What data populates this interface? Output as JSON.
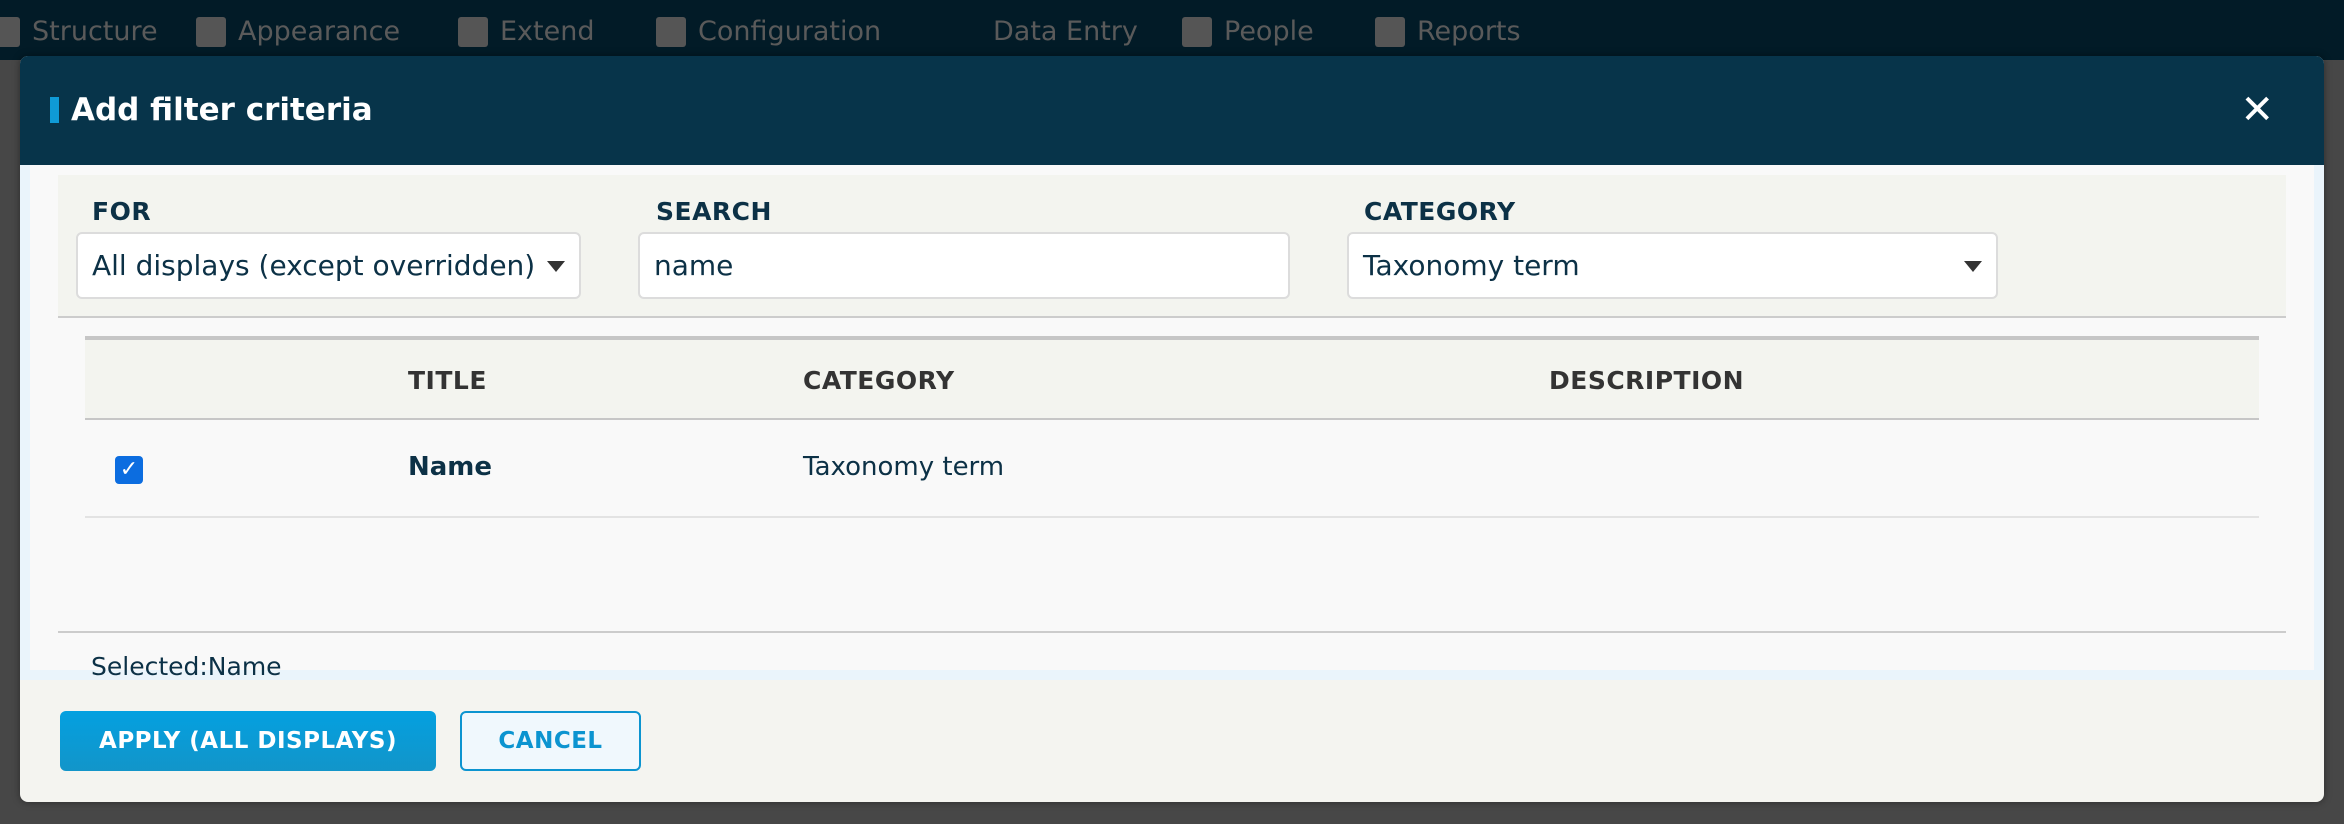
{
  "topnav": {
    "items": [
      {
        "label": "Structure",
        "icon": "structure-icon"
      },
      {
        "label": "Appearance",
        "icon": "appearance-icon"
      },
      {
        "label": "Extend",
        "icon": "extend-icon"
      },
      {
        "label": "Configuration",
        "icon": "wrench-icon"
      },
      {
        "label": "Data Entry",
        "icon": ""
      },
      {
        "label": "People",
        "icon": "people-icon"
      },
      {
        "label": "Reports",
        "icon": "reports-icon"
      }
    ]
  },
  "dialog": {
    "title": "Add filter criteria",
    "close": "✕",
    "filters": {
      "for_label": "FOR",
      "for_value": "All displays (except overridden)",
      "search_label": "SEARCH",
      "search_value": "name",
      "category_label": "CATEGORY",
      "category_value": "Taxonomy term"
    },
    "table": {
      "headers": [
        "TITLE",
        "CATEGORY",
        "DESCRIPTION"
      ],
      "rows": [
        {
          "checked": true,
          "title": "Name",
          "category": "Taxonomy term",
          "description": ""
        }
      ]
    },
    "selected_text": "Selected:Name",
    "apply_label": "APPLY (ALL DISPLAYS)",
    "cancel_label": "CANCEL"
  },
  "colors": {
    "header": "#07344a",
    "accent": "#0f9ad6",
    "checkbox": "#0c6de0"
  }
}
